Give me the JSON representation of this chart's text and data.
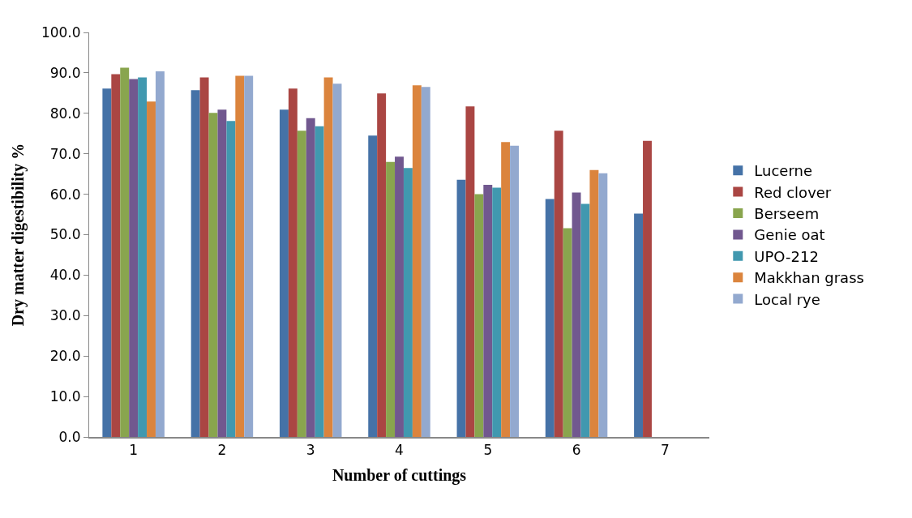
{
  "chart_data": {
    "type": "bar",
    "xlabel": "Number of cuttings",
    "ylabel": "Dry matter digestibility %",
    "categories": [
      "1",
      "2",
      "3",
      "4",
      "5",
      "6",
      "7"
    ],
    "series": [
      {
        "name": "Lucerne",
        "color": "#4572a7",
        "values": [
          86.1,
          85.7,
          80.9,
          74.5,
          63.6,
          58.8,
          55.2
        ]
      },
      {
        "name": "Red clover",
        "color": "#aa4643",
        "values": [
          89.7,
          88.9,
          86.1,
          84.9,
          81.7,
          75.7,
          73.2
        ]
      },
      {
        "name": "Berseem",
        "color": "#89a54e",
        "values": [
          91.3,
          80.1,
          75.7,
          68.0,
          60.0,
          51.6,
          null
        ]
      },
      {
        "name": "Genie oat",
        "color": "#71588f",
        "values": [
          88.5,
          80.9,
          78.8,
          69.3,
          62.3,
          60.4,
          null
        ]
      },
      {
        "name": "UPO-212",
        "color": "#4198af",
        "values": [
          88.9,
          78.1,
          76.8,
          66.5,
          61.6,
          57.6,
          null
        ]
      },
      {
        "name": "Makkhan grass",
        "color": "#db843d",
        "values": [
          82.9,
          89.3,
          88.9,
          86.9,
          72.9,
          66.0,
          null
        ]
      },
      {
        "name": "Local rye",
        "color": "#93a9cf",
        "values": [
          90.4,
          89.3,
          87.3,
          86.5,
          72.0,
          65.2,
          null
        ]
      }
    ],
    "ylim": [
      0,
      100
    ],
    "yticks": [
      {
        "value": 0,
        "label": "0.0"
      },
      {
        "value": 10,
        "label": "10.0"
      },
      {
        "value": 20,
        "label": "20.0"
      },
      {
        "value": 30,
        "label": "30.0"
      },
      {
        "value": 40,
        "label": "40.0"
      },
      {
        "value": 50,
        "label": "50.0"
      },
      {
        "value": 60,
        "label": "60.0"
      },
      {
        "value": 70,
        "label": "70.0"
      },
      {
        "value": 80,
        "label": "80.0"
      },
      {
        "value": 90,
        "label": "90.0"
      },
      {
        "value": 100,
        "label": "100.0"
      }
    ],
    "legend": "right"
  }
}
